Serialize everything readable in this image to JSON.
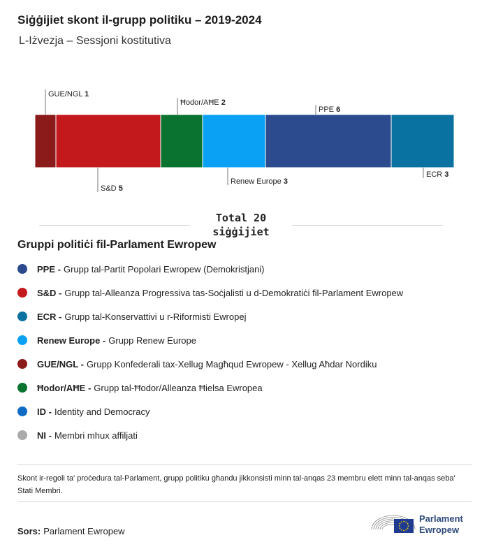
{
  "header": {
    "title": "Siġġijiet skont il-grupp politiku – 2019-2024",
    "subtitle": "L-Iżvezja – Sessjoni kostitutiva"
  },
  "chart_data": {
    "type": "bar",
    "orientation": "horizontal-stacked",
    "title": "Siġġijiet skont il-grupp politiku – 2019-2024",
    "subtitle": "L-Iżvezja – Sessjoni kostitutiva",
    "categories": [
      "GUE/NGL",
      "S&D",
      "Ħodor/AĦE",
      "Renew Europe",
      "PPE",
      "ECR"
    ],
    "values": [
      1,
      5,
      2,
      3,
      6,
      3
    ],
    "colors": [
      "#8b1a1a",
      "#c3191d",
      "#0b7330",
      "#0aa1f5",
      "#2c4b8e",
      "#0a72a0"
    ],
    "label_positions": [
      "top",
      "bottom",
      "top",
      "bottom",
      "top",
      "bottom"
    ],
    "total": 20,
    "total_label": "Total 20 siġġijiet"
  },
  "total": {
    "line1": "Total 20",
    "line2": "siġġijiet"
  },
  "legend": {
    "title": "Gruppi politiċi fil-Parlament Ewropew",
    "items": [
      {
        "abbr": "PPE -",
        "name": "Grupp tal-Partit Popolari Ewropew (Demokristjani)",
        "color": "#2c4b8e"
      },
      {
        "abbr": "S&D -",
        "name": "Grupp tal-Alleanza Progressiva tas-Soċjalisti u d-Demokratiċi fil-Parlament Ewropew",
        "color": "#c3191d"
      },
      {
        "abbr": "ECR -",
        "name": "Grupp tal-Konservattivi u r-Riformisti Ewropej",
        "color": "#0a72a0"
      },
      {
        "abbr": "Renew Europe -",
        "name": "Grupp Renew Europe",
        "color": "#0aa1f5"
      },
      {
        "abbr": "GUE/NGL -",
        "name": "Grupp Konfederali tax-Xellug Magħqud Ewropew - Xellug Aħdar Nordiku",
        "color": "#8b1a1a"
      },
      {
        "abbr": "Ħodor/AĦE -",
        "name": "Grupp tal-Ħodor/Alleanza Ħielsa Ewropea",
        "color": "#0b7330"
      },
      {
        "abbr": "ID -",
        "name": "Identity and Democracy",
        "color": "#0f6cc4"
      },
      {
        "abbr": "NI -",
        "name": "Membri mhux affiljati",
        "color": "#aaaaaa"
      }
    ]
  },
  "note": "Skont ir-regoli ta' proċedura tal-Parlament, grupp politiku għandu jikkonsisti minn tal-anqas 23 membru elett minn tal-anqas seba' Stati Membri.",
  "source": {
    "label": "Sors:",
    "value": "Parlament Ewropew"
  },
  "logo": {
    "line1": "Parlament",
    "line2": "Ewropew"
  }
}
